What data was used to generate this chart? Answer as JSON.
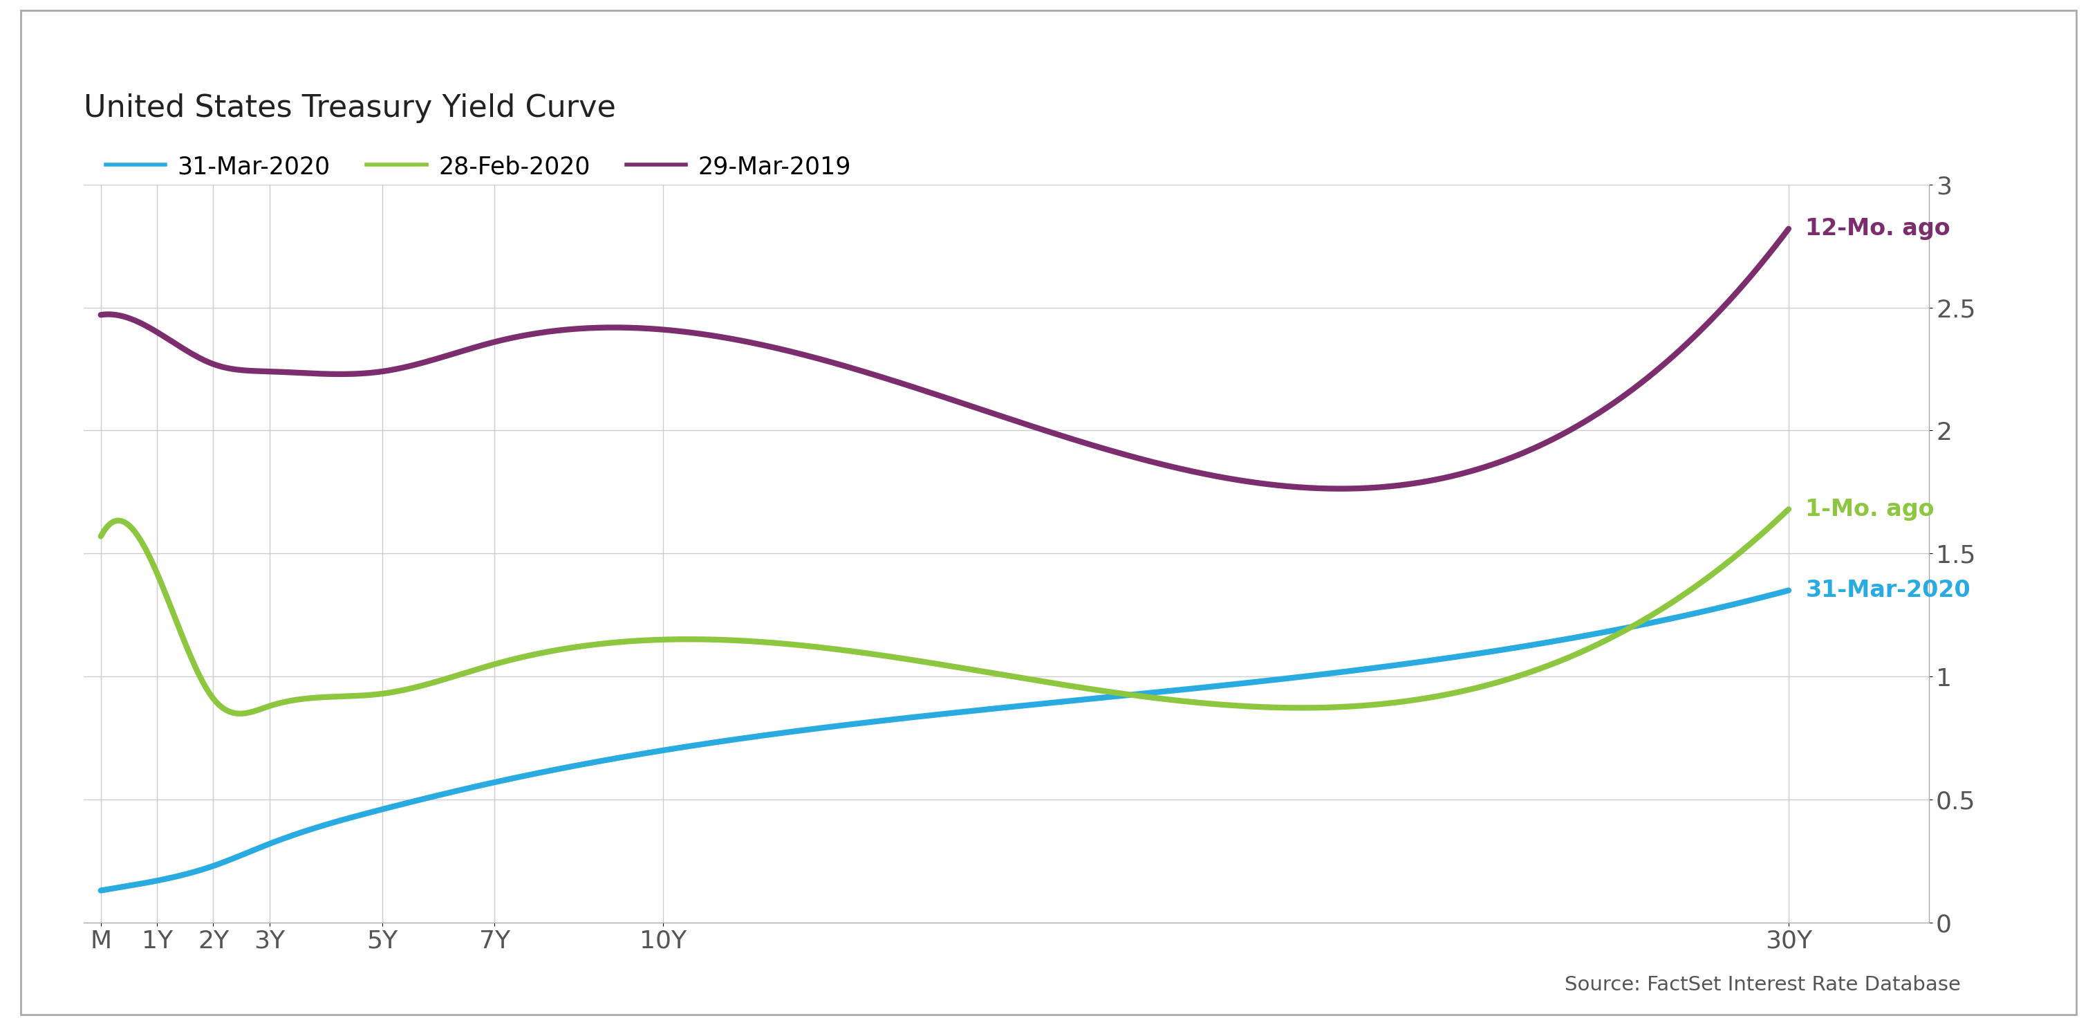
{
  "title": "United States Treasury Yield Curve",
  "source_text": "Source: FactSet Interest Rate Database",
  "x_labels": [
    "M",
    "1Y",
    "2Y",
    "3Y",
    "5Y",
    "7Y",
    "10Y",
    "30Y"
  ],
  "x_positions": [
    0,
    1,
    2,
    3,
    5,
    7,
    10,
    30
  ],
  "series": [
    {
      "label": "31-Mar-2020",
      "annotation": "31-Mar-2020",
      "color": "#29ABE2",
      "linewidth": 6,
      "values": [
        0.13,
        0.17,
        0.23,
        0.32,
        0.46,
        0.57,
        0.7,
        1.35
      ]
    },
    {
      "label": "28-Feb-2020",
      "annotation": "1-Mo. ago",
      "color": "#8DC63F",
      "linewidth": 6,
      "values": [
        1.57,
        1.42,
        0.91,
        0.88,
        0.93,
        1.05,
        1.15,
        1.68
      ]
    },
    {
      "label": "29-Mar-2019",
      "annotation": "12-Mo. ago",
      "color": "#7B2D6E",
      "linewidth": 6,
      "values": [
        2.47,
        2.4,
        2.27,
        2.24,
        2.24,
        2.36,
        2.41,
        2.82
      ]
    }
  ],
  "ylim": [
    0,
    3.0
  ],
  "yticks": [
    0,
    0.5,
    1.0,
    1.5,
    2.0,
    2.5,
    3.0
  ],
  "xlim": [
    -0.3,
    32.5
  ],
  "background_color": "#ffffff",
  "grid_color": "#cccccc",
  "border_color": "#aaaaaa",
  "title_fontsize": 32,
  "tick_fontsize": 26,
  "legend_fontsize": 25,
  "annotation_fontsize": 24,
  "source_fontsize": 21
}
